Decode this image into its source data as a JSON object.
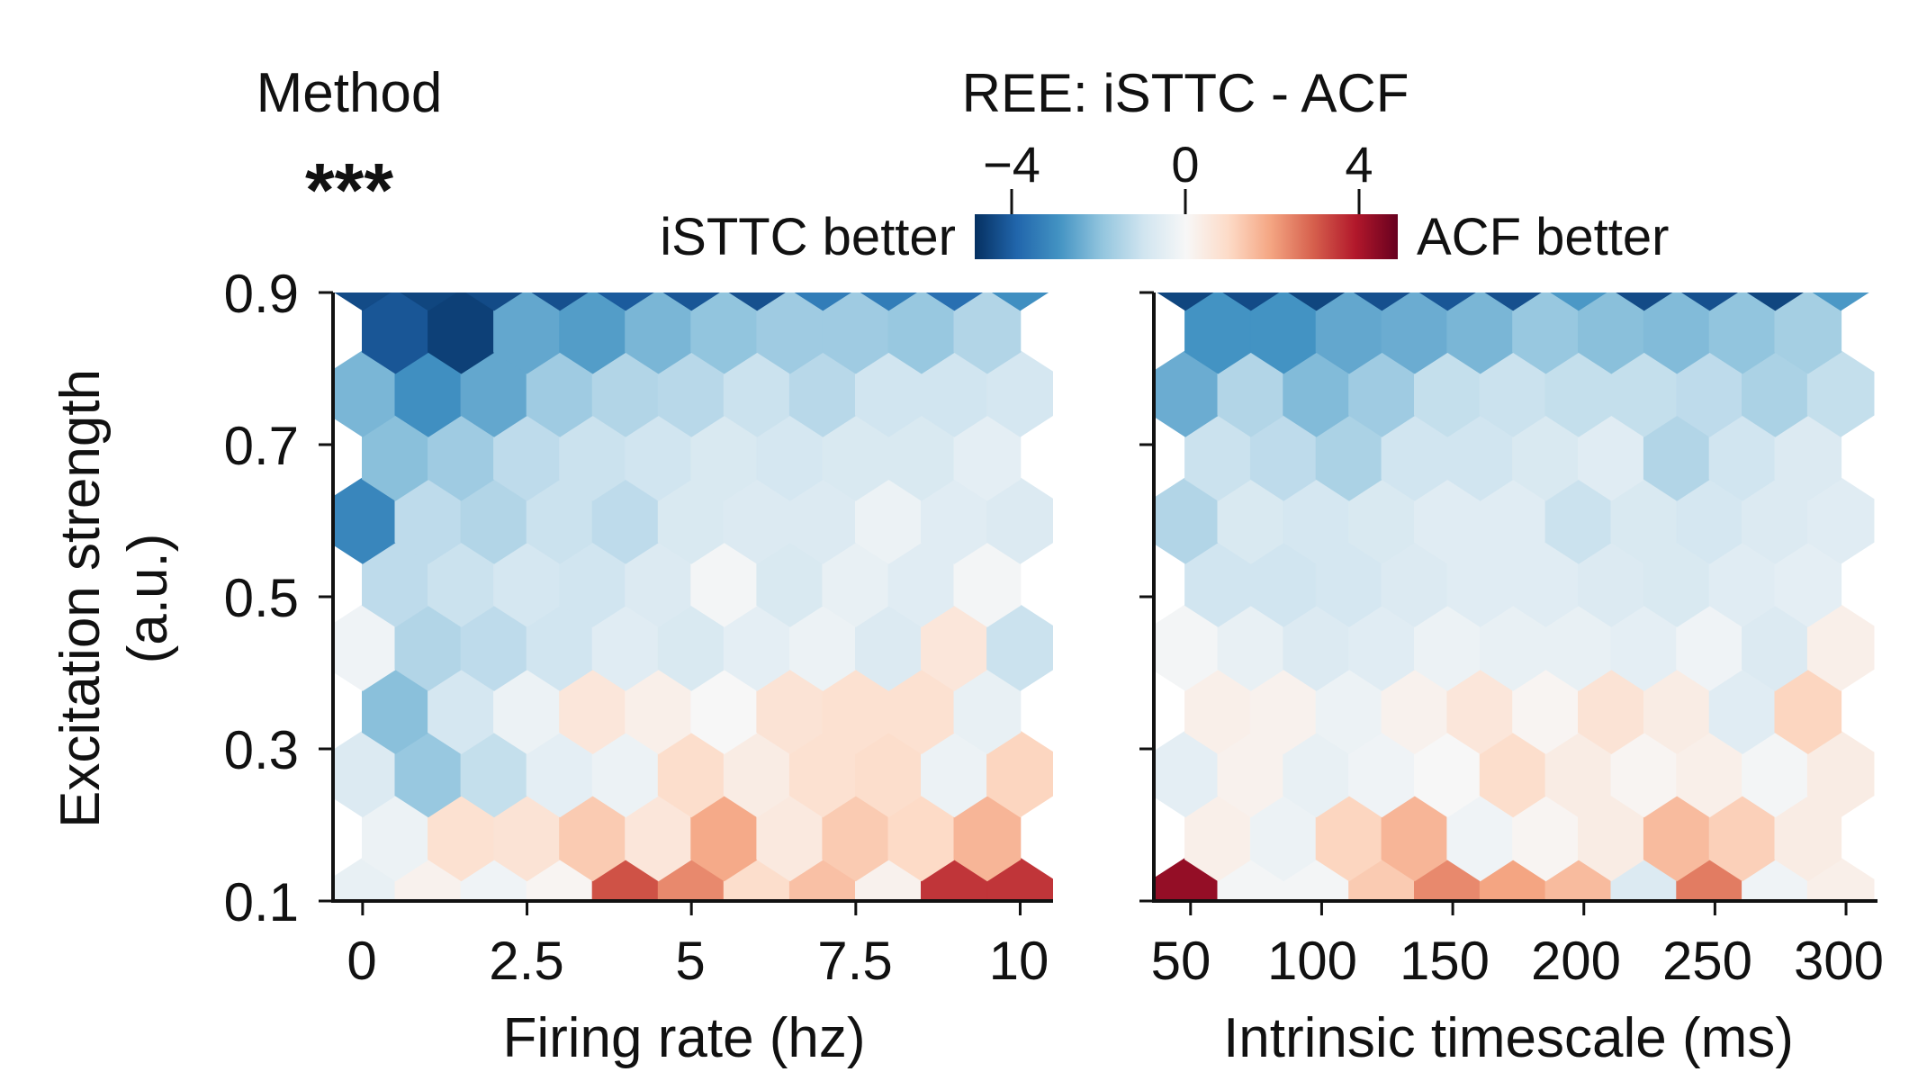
{
  "header": {
    "method_label": "Method",
    "significance": "***",
    "colorbar_title": "REE: iSTTC - ACF",
    "left_label": "iSTTC better",
    "right_label": "ACF better"
  },
  "colorbar": {
    "ticks": [
      "−4",
      "0",
      "4"
    ],
    "tick_values": [
      -4,
      0,
      4
    ],
    "range": [
      -5,
      5
    ],
    "colors": [
      "#053061",
      "#2166ac",
      "#4393c3",
      "#92c5de",
      "#d1e5f0",
      "#f7f7f7",
      "#fddbc7",
      "#f4a582",
      "#d6604d",
      "#b2182b",
      "#67001f"
    ]
  },
  "y_axis": {
    "label_line1": "Excitation strength",
    "label_line2": "(a.u.)",
    "tick_labels": [
      "0.9",
      "0.7",
      "0.5",
      "0.3",
      "0.1"
    ]
  },
  "left_panel": {
    "xlabel": "Firing rate (hz)",
    "tick_labels": [
      "0",
      "2.5",
      "5",
      "7.5",
      "10"
    ]
  },
  "right_panel": {
    "xlabel": "Intrinsic timescale (ms)",
    "tick_labels": [
      "50",
      "100",
      "150",
      "200",
      "250",
      "300"
    ]
  },
  "chart_data": [
    {
      "type": "heatmap",
      "title": "",
      "xlabel": "Firing rate (hz)",
      "ylabel": "Excitation strength (a.u.)",
      "xlim": [
        -0.45,
        10.5
      ],
      "ylim": [
        0.1,
        0.9
      ],
      "xticks": [
        0,
        2.5,
        5,
        7.5,
        10
      ],
      "yticks": [
        0.1,
        0.3,
        0.5,
        0.7,
        0.9
      ],
      "x_centers": [
        0,
        1,
        2,
        3,
        4,
        5,
        6,
        7,
        8,
        9,
        10
      ],
      "y_centers": [
        0.1,
        0.183,
        0.267,
        0.35,
        0.433,
        0.517,
        0.6,
        0.683,
        0.767,
        0.85,
        0.933
      ],
      "values": [
        [
          -0.4,
          0.2,
          -0.2,
          0.1,
          3.2,
          2.4,
          0.9,
          1.5,
          0.2,
          3.6,
          3.6
        ],
        [
          -0.3,
          0.8,
          0.7,
          1.3,
          0.6,
          1.9,
          0.5,
          1.3,
          1.0,
          1.7
        ],
        [
          -0.7,
          -1.9,
          -1.2,
          -0.5,
          -0.3,
          0.9,
          0.4,
          0.8,
          0.9,
          -0.3,
          1.1
        ],
        [
          -2.1,
          -0.9,
          -0.3,
          0.6,
          0.3,
          0.0,
          0.7,
          0.8,
          0.8,
          -0.4
        ],
        [
          -0.2,
          -1.5,
          -1.3,
          -1.0,
          -0.6,
          -0.8,
          -0.5,
          -0.3,
          -0.7,
          0.6,
          -1.1
        ],
        [
          -1.3,
          -1.1,
          -0.9,
          -1.0,
          -0.7,
          -0.1,
          -0.8,
          -0.4,
          -0.6,
          -0.1
        ],
        [
          -3.3,
          -1.3,
          -1.5,
          -1.1,
          -1.3,
          -0.8,
          -0.7,
          -0.7,
          -0.3,
          -0.6,
          -0.7
        ],
        [
          -2.1,
          -1.8,
          -1.3,
          -1.1,
          -1.0,
          -0.8,
          -0.9,
          -0.8,
          -0.8,
          -0.5
        ],
        [
          -2.3,
          -3.1,
          -2.6,
          -1.8,
          -1.5,
          -1.4,
          -1.1,
          -1.4,
          -1.0,
          -1.0,
          -0.9
        ],
        [
          -4.3,
          -4.7,
          -2.6,
          -2.8,
          -2.3,
          -2.0,
          -1.8,
          -1.8,
          -1.9,
          -1.5
        ],
        [
          -4.5,
          -4.6,
          -4.5,
          -4.4,
          -4.2,
          -4.3,
          -4.4,
          -3.5,
          -3.5,
          -3.8,
          -3.1
        ]
      ]
    },
    {
      "type": "heatmap",
      "title": "",
      "xlabel": "Intrinsic timescale (ms)",
      "ylabel": "Excitation strength (a.u.)",
      "xlim": [
        36,
        312
      ],
      "ylim": [
        0.1,
        0.9
      ],
      "xticks": [
        50,
        100,
        150,
        200,
        250,
        300
      ],
      "yticks": [
        0.1,
        0.3,
        0.5,
        0.7,
        0.9
      ],
      "x_centers": [
        48,
        73,
        98,
        123,
        148,
        173,
        198,
        223,
        248,
        273,
        298
      ],
      "y_centers": [
        0.1,
        0.183,
        0.267,
        0.35,
        0.433,
        0.517,
        0.6,
        0.683,
        0.767,
        0.85,
        0.933
      ],
      "values": [
        [
          4.4,
          -0.1,
          -0.1,
          1.3,
          2.4,
          2.0,
          1.6,
          -0.7,
          2.6,
          -0.2,
          0.3
        ],
        [
          0.3,
          -0.3,
          1.1,
          1.7,
          -0.2,
          0.1,
          0.4,
          1.6,
          1.2,
          0.4
        ],
        [
          -0.5,
          0.2,
          -0.4,
          -0.2,
          0.0,
          0.9,
          0.4,
          0.1,
          0.3,
          -0.1,
          0.4
        ],
        [
          0.3,
          0.2,
          -0.3,
          0.2,
          0.6,
          0.1,
          0.7,
          0.4,
          -0.6,
          1.1
        ],
        [
          -0.1,
          -0.4,
          -0.7,
          -0.6,
          -0.3,
          -0.4,
          -0.4,
          -0.5,
          -0.2,
          -0.7,
          0.3
        ],
        [
          -1.0,
          -1.0,
          -0.9,
          -0.7,
          -0.6,
          -0.6,
          -0.7,
          -0.8,
          -0.6,
          -0.5
        ],
        [
          -1.5,
          -0.8,
          -0.9,
          -0.8,
          -0.6,
          -0.6,
          -1.1,
          -0.8,
          -0.9,
          -0.7,
          -0.6
        ],
        [
          -1.1,
          -1.3,
          -1.6,
          -1.0,
          -1.0,
          -0.8,
          -0.6,
          -1.5,
          -1.0,
          -0.7
        ],
        [
          -2.5,
          -1.5,
          -2.2,
          -1.8,
          -1.2,
          -1.1,
          -1.2,
          -1.2,
          -1.3,
          -1.6,
          -1.2
        ],
        [
          -3.0,
          -3.0,
          -2.6,
          -2.5,
          -2.3,
          -1.9,
          -2.1,
          -2.2,
          -2.0,
          -1.7
        ],
        [
          -4.6,
          -4.5,
          -4.6,
          -4.4,
          -4.3,
          -4.4,
          -2.9,
          -4.5,
          -4.4,
          -4.6,
          -2.9
        ]
      ]
    }
  ]
}
